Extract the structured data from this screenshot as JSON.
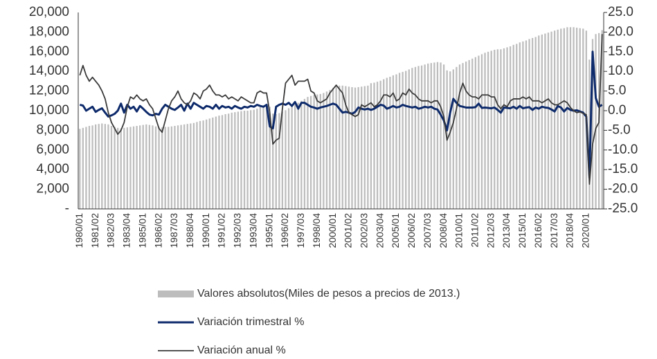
{
  "chart_data": {
    "type": "combo",
    "categories": [
      "1980/01",
      null,
      null,
      null,
      null,
      "1981/02",
      null,
      null,
      null,
      null,
      "1982/03",
      null,
      null,
      null,
      null,
      "1983/04",
      null,
      null,
      null,
      null,
      "1985/01",
      null,
      null,
      null,
      null,
      "1986/02",
      null,
      null,
      null,
      null,
      "1987/03",
      null,
      null,
      null,
      null,
      "1988/04",
      null,
      null,
      null,
      null,
      "1990/01",
      null,
      null,
      null,
      null,
      "1991/02",
      null,
      null,
      null,
      null,
      "1992/03",
      null,
      null,
      null,
      null,
      "1993/04",
      null,
      null,
      null,
      null,
      "1995/01",
      null,
      null,
      null,
      null,
      "1996/02",
      null,
      null,
      null,
      null,
      "1997/03",
      null,
      null,
      null,
      null,
      "1998/04",
      null,
      null,
      null,
      null,
      "2000/01",
      null,
      null,
      null,
      null,
      "2001/02",
      null,
      null,
      null,
      null,
      "2002/03",
      null,
      null,
      null,
      null,
      "2003/04",
      null,
      null,
      null,
      null,
      "2005/01",
      null,
      null,
      null,
      null,
      "2006/02",
      null,
      null,
      null,
      null,
      "2007/03",
      null,
      null,
      null,
      null,
      "2008/04",
      null,
      null,
      null,
      null,
      "2010/01",
      null,
      null,
      null,
      null,
      "2011/02",
      null,
      null,
      null,
      null,
      "2012/03",
      null,
      null,
      null,
      null,
      "2013/04",
      null,
      null,
      null,
      null,
      "2015/01",
      null,
      null,
      null,
      null,
      "2016/02",
      null,
      null,
      null,
      null,
      "2017/03",
      null,
      null,
      null,
      null,
      "2018/04",
      null,
      null,
      null,
      null,
      "2020/01",
      null,
      null,
      null,
      null,
      null
    ],
    "series": [
      {
        "name": "Valores absolutos(Miles de pesos a precios de 2013.)",
        "type": "bar",
        "axis": "y",
        "color": "#bdbdbd",
        "values": [
          8150,
          8250,
          8350,
          8450,
          8500,
          8600,
          8650,
          8700,
          8650,
          8600,
          8450,
          8350,
          8250,
          8200,
          8250,
          8300,
          8350,
          8400,
          8450,
          8500,
          8550,
          8600,
          8550,
          8500,
          8400,
          8300,
          8300,
          8350,
          8350,
          8400,
          8450,
          8500,
          8550,
          8600,
          8650,
          8700,
          8750,
          8850,
          8950,
          9000,
          9100,
          9200,
          9300,
          9400,
          9500,
          9550,
          9650,
          9700,
          9800,
          9850,
          9900,
          9950,
          10000,
          10000,
          10050,
          10100,
          10200,
          10350,
          10450,
          10550,
          10400,
          9700,
          9650,
          9750,
          9900,
          10050,
          10250,
          10400,
          10600,
          10800,
          11000,
          11200,
          11400,
          11500,
          11600,
          11650,
          11700,
          11800,
          11950,
          12100,
          12300,
          12450,
          12550,
          12550,
          12500,
          12450,
          12400,
          12350,
          12400,
          12450,
          12500,
          12550,
          12800,
          12850,
          12950,
          13050,
          13200,
          13350,
          13450,
          13600,
          13700,
          13850,
          13950,
          14050,
          14200,
          14350,
          14450,
          14550,
          14600,
          14700,
          14800,
          14850,
          14900,
          14950,
          14900,
          14700,
          14100,
          14000,
          14200,
          14450,
          14700,
          14850,
          15000,
          15150,
          15300,
          15450,
          15600,
          15750,
          15900,
          16000,
          16100,
          16200,
          16250,
          16250,
          16350,
          16450,
          16550,
          16700,
          16800,
          16950,
          17050,
          17150,
          17300,
          17400,
          17500,
          17650,
          17750,
          17850,
          17950,
          18050,
          18150,
          18250,
          18350,
          18400,
          18500,
          18500,
          18500,
          18450,
          18400,
          18350,
          18150,
          15200,
          17300,
          17800,
          17900,
          18200
        ]
      },
      {
        "name": "Variación trimestral %",
        "type": "line",
        "axis": "y2",
        "color": "#0d2a6b",
        "width": 3,
        "values": [
          1.5,
          1.3,
          0.0,
          0.5,
          1.0,
          -0.3,
          0.2,
          0.6,
          -0.5,
          -1.5,
          -1.2,
          -0.8,
          0.0,
          1.8,
          -0.5,
          1.5,
          0.5,
          1.0,
          -0.2,
          1.2,
          0.5,
          -0.3,
          -1.0,
          -1.2,
          -0.8,
          -1.0,
          0.5,
          1.5,
          1.0,
          0.5,
          0.2,
          0.8,
          1.5,
          0.0,
          1.8,
          0.5,
          2.0,
          1.5,
          1.0,
          0.5,
          1.2,
          1.0,
          0.5,
          1.5,
          0.5,
          1.2,
          0.8,
          1.0,
          0.5,
          1.2,
          0.8,
          0.5,
          1.0,
          0.8,
          1.2,
          1.0,
          1.5,
          1.2,
          1.0,
          1.5,
          -4.0,
          -4.5,
          1.0,
          1.5,
          1.8,
          1.5,
          2.0,
          1.2,
          2.2,
          0.5,
          2.0,
          2.0,
          1.5,
          1.0,
          0.8,
          0.5,
          0.8,
          1.0,
          1.2,
          1.5,
          1.8,
          1.5,
          0.5,
          -0.5,
          -0.3,
          -0.5,
          -0.8,
          -0.3,
          0.8,
          0.5,
          0.3,
          0.5,
          0.2,
          0.5,
          1.0,
          1.5,
          1.3,
          0.5,
          0.8,
          1.2,
          0.8,
          1.0,
          1.5,
          1.2,
          1.0,
          0.8,
          1.0,
          0.5,
          0.7,
          1.0,
          0.8,
          1.0,
          0.5,
          0.3,
          -1.0,
          -2.5,
          -5.0,
          -0.5,
          3.0,
          2.0,
          1.2,
          1.0,
          0.8,
          0.8,
          0.8,
          0.9,
          1.8,
          0.7,
          0.8,
          0.7,
          0.6,
          0.8,
          0.2,
          -0.5,
          0.8,
          0.7,
          0.6,
          1.0,
          0.5,
          1.2,
          0.6,
          0.8,
          0.9,
          0.2,
          0.8,
          0.5,
          1.0,
          0.8,
          0.7,
          0.3,
          -0.2,
          1.2,
          0.8,
          -0.2,
          0.7,
          0.2,
          0.0,
          0.1,
          -0.2,
          -0.5,
          -1.5,
          -17.0,
          15.0,
          3.2,
          1.0,
          1.5
        ]
      },
      {
        "name": "Variación anual %",
        "type": "line",
        "axis": "y2",
        "color": "#3a3a3a",
        "width": 1.8,
        "values": [
          9.0,
          11.5,
          9.0,
          7.5,
          8.5,
          7.5,
          6.5,
          5.0,
          3.0,
          -0.5,
          -3.0,
          -4.5,
          -6.0,
          -5.0,
          -3.0,
          1.0,
          3.5,
          3.0,
          4.0,
          3.0,
          2.5,
          3.0,
          1.5,
          0.5,
          -2.0,
          -4.5,
          -5.5,
          -2.5,
          0.5,
          2.5,
          3.5,
          5.0,
          3.0,
          2.0,
          1.5,
          2.5,
          4.5,
          4.0,
          3.0,
          5.0,
          5.5,
          6.5,
          5.0,
          4.0,
          4.0,
          3.5,
          4.0,
          3.0,
          3.5,
          3.0,
          2.5,
          3.5,
          3.0,
          2.5,
          2.0,
          2.0,
          4.5,
          5.0,
          4.5,
          4.5,
          -0.5,
          -8.5,
          -7.5,
          -7.0,
          0.5,
          7.0,
          8.0,
          9.0,
          6.5,
          7.5,
          7.5,
          7.5,
          8.0,
          5.0,
          4.5,
          2.5,
          2.0,
          2.5,
          3.0,
          4.5,
          5.5,
          6.5,
          5.5,
          4.5,
          1.5,
          -0.5,
          -1.0,
          -1.5,
          -1.0,
          1.5,
          1.0,
          1.5,
          2.0,
          1.0,
          1.5,
          2.5,
          4.0,
          4.0,
          3.5,
          4.5,
          2.5,
          3.0,
          4.5,
          4.0,
          5.5,
          4.5,
          4.0,
          3.0,
          2.5,
          2.5,
          2.5,
          2.0,
          2.5,
          2.5,
          1.0,
          -1.5,
          -7.5,
          -5.5,
          -3.0,
          0.5,
          4.5,
          7.0,
          5.0,
          4.0,
          3.5,
          3.5,
          3.0,
          4.0,
          4.0,
          4.0,
          3.5,
          3.5,
          1.5,
          0.5,
          1.5,
          1.0,
          2.5,
          3.0,
          3.0,
          3.0,
          3.5,
          3.0,
          3.5,
          2.5,
          2.5,
          2.5,
          2.0,
          2.5,
          3.0,
          2.0,
          1.5,
          1.5,
          2.0,
          2.5,
          2.0,
          0.8,
          0.0,
          -0.5,
          -0.3,
          -0.7,
          -1.0,
          -18.7,
          -8.5,
          -4.5,
          -3.0,
          19.5
        ]
      }
    ],
    "ylim": [
      0,
      20000
    ],
    "yticks": [
      {
        "value": 0,
        "label": "-"
      },
      {
        "value": 2000,
        "label": "2,000"
      },
      {
        "value": 4000,
        "label": "4,000"
      },
      {
        "value": 6000,
        "label": "6,000"
      },
      {
        "value": 8000,
        "label": "8,000"
      },
      {
        "value": 10000,
        "label": "10,000"
      },
      {
        "value": 12000,
        "label": "12,000"
      },
      {
        "value": 14000,
        "label": "14,000"
      },
      {
        "value": 16000,
        "label": "16,000"
      },
      {
        "value": 18000,
        "label": "18,000"
      },
      {
        "value": 20000,
        "label": "20,000"
      }
    ],
    "y2lim": [
      -25,
      25
    ],
    "y2ticks": [
      {
        "value": -25,
        "label": "-25.0"
      },
      {
        "value": -20,
        "label": "-20.0"
      },
      {
        "value": -15,
        "label": "-15.0"
      },
      {
        "value": -10,
        "label": "-10.0"
      },
      {
        "value": -5,
        "label": "-5.0"
      },
      {
        "value": 0,
        "label": "0.0"
      },
      {
        "value": 5,
        "label": "5.0"
      },
      {
        "value": 10,
        "label": "10.0"
      },
      {
        "value": 15,
        "label": "15.0"
      },
      {
        "value": 20,
        "label": "20.0"
      },
      {
        "value": 25,
        "label": "25.0"
      }
    ],
    "legend": "bottom"
  }
}
